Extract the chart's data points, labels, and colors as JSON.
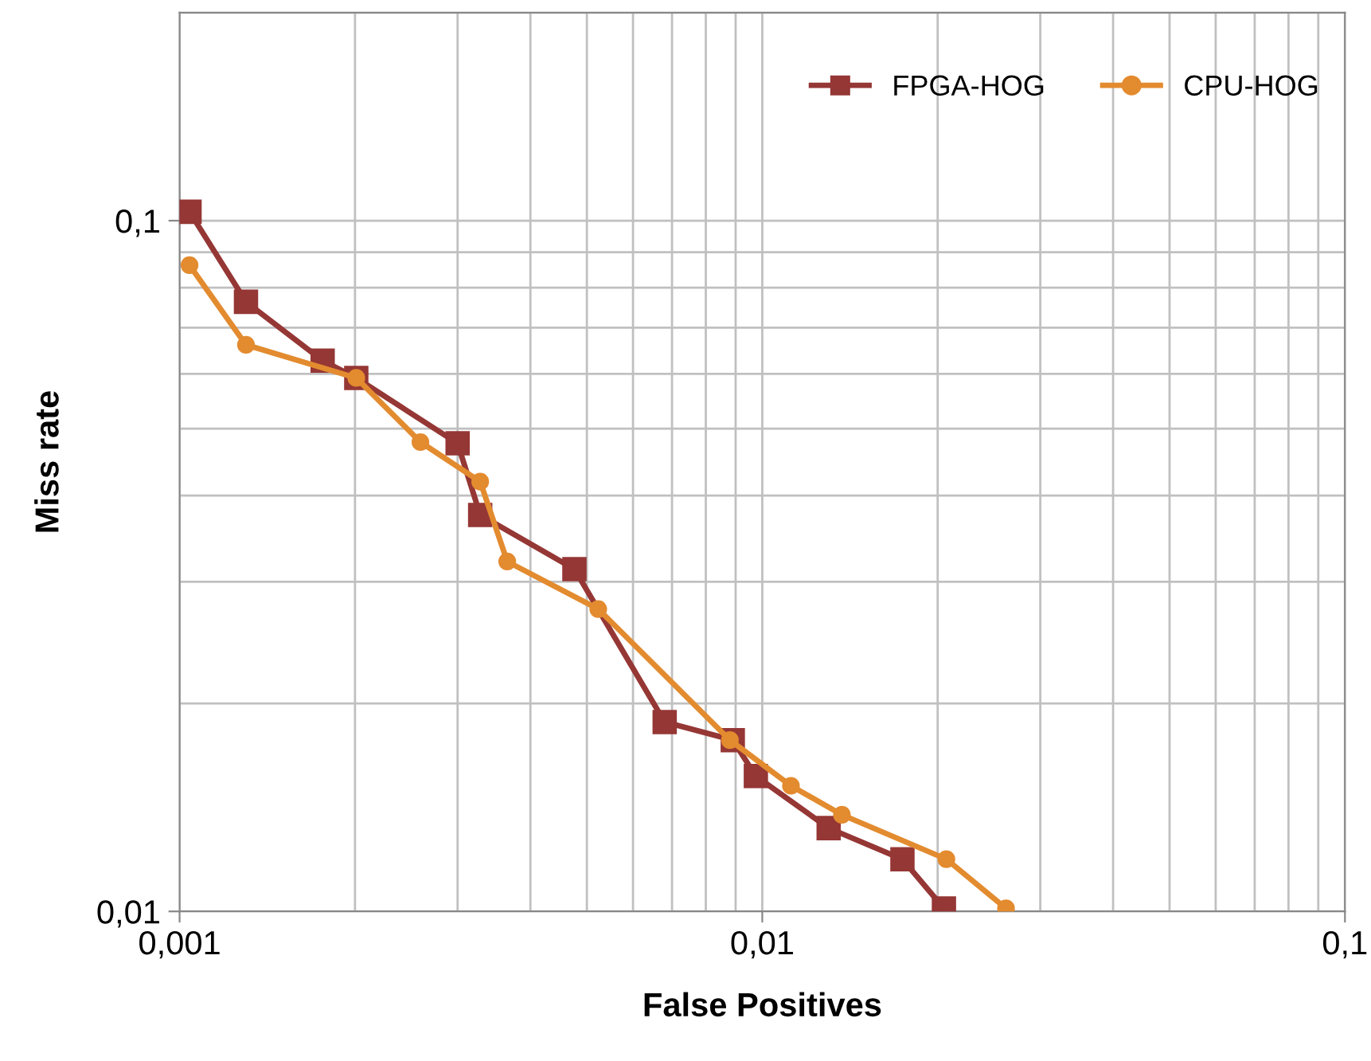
{
  "chart_data": {
    "type": "line",
    "xlabel": "False Positives",
    "ylabel": "Miss rate",
    "log": "xy",
    "grid": true,
    "legend": "top right",
    "line_style": "solid",
    "xlim": [
      0.001,
      0.1
    ],
    "ylim": [
      0.01,
      0.2
    ],
    "xticks": [
      {
        "value": 0.001,
        "label": "0,001"
      },
      {
        "value": 0.01,
        "label": "0,01"
      },
      {
        "value": 0.1,
        "label": "0,1"
      }
    ],
    "yticks": [
      {
        "value": 0.01,
        "label": "0,01"
      },
      {
        "value": 0.1,
        "label": "0,1"
      }
    ],
    "series": [
      {
        "name": "FPGA-HOG",
        "color": "#953735",
        "marker": "square",
        "x": [
          0.00104,
          0.0013,
          0.00176,
          0.00201,
          0.003,
          0.00328,
          0.00476,
          0.0068,
          0.0089,
          0.00975,
          0.013,
          0.0174,
          0.0205
        ],
        "values": [
          0.103,
          0.0763,
          0.0627,
          0.0592,
          0.0476,
          0.0375,
          0.0313,
          0.0188,
          0.0177,
          0.0157,
          0.0132,
          0.0119,
          0.0101
        ]
      },
      {
        "name": "CPU-HOG",
        "color": "#e38b2f",
        "marker": "circle",
        "x": [
          0.00104,
          0.0013,
          0.00201,
          0.00259,
          0.00328,
          0.00365,
          0.00523,
          0.0088,
          0.0112,
          0.0137,
          0.0207,
          0.0262
        ],
        "values": [
          0.0862,
          0.0661,
          0.0592,
          0.0478,
          0.0419,
          0.0321,
          0.0274,
          0.0177,
          0.0152,
          0.0138,
          0.0119,
          0.0101
        ]
      }
    ]
  }
}
